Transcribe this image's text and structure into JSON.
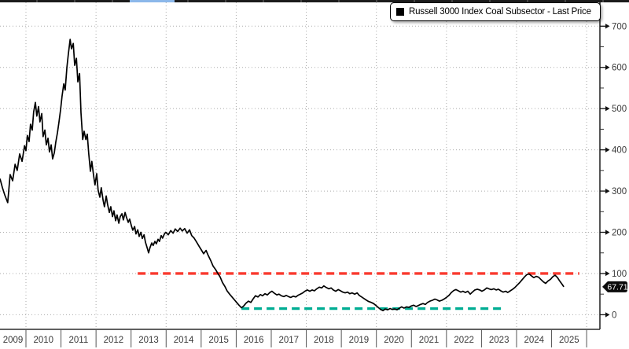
{
  "window": {
    "top_bar": {
      "accent_color": "#8cb8ea",
      "bar_color": "#1b1b1b"
    }
  },
  "legend": {
    "marker_icon": "black-square",
    "label": "Russell 3000 Index Coal Subsector - Last Price"
  },
  "last_price": {
    "value": "67.71"
  },
  "colors": {
    "background": "#ffffff",
    "series_line": "#000000",
    "grid": "#ababab",
    "axis": "#2b2b2b",
    "tick_label": "#3a3a3a",
    "resistance_dashed": "#f9392e",
    "support_dashed": "#00ad93",
    "price_badge_bg": "#0b0b0b",
    "price_badge_text": "#ffffff"
  },
  "chart_data": {
    "type": "line",
    "title": "",
    "xlabel": "",
    "ylabel": "",
    "grid": "dotted",
    "legend_position": "top-right",
    "xlim": [
      2009.26,
      2026.38
    ],
    "ylim": [
      0,
      700
    ],
    "y_ticks": [
      0,
      100,
      200,
      300,
      400,
      500,
      600,
      700
    ],
    "y_minor_tick_step": 50,
    "x_ticks": [
      2009,
      2010,
      2011,
      2012,
      2013,
      2014,
      2015,
      2016,
      2017,
      2018,
      2019,
      2020,
      2021,
      2022,
      2023,
      2024,
      2025
    ],
    "vertical_gridline_years": [
      2010,
      2012,
      2014,
      2016,
      2018,
      2020,
      2022,
      2024,
      2026
    ],
    "last_price": 67.71,
    "reference_lines": [
      {
        "name": "resistance-100",
        "value": 100,
        "color": "#f9392e",
        "style": "dashed",
        "x_start": 2013.19,
        "x_end": 2025.79
      },
      {
        "name": "support-15",
        "value": 15,
        "color": "#00ad93",
        "style": "dashed",
        "x_start": 2016.15,
        "x_end": 2023.64
      }
    ],
    "series": [
      {
        "name": "Russell 3000 Index Coal Subsector - Last Price",
        "color": "#000000",
        "points": [
          [
            2009.26,
            330
          ],
          [
            2009.33,
            308
          ],
          [
            2009.39,
            292
          ],
          [
            2009.48,
            272
          ],
          [
            2009.55,
            340
          ],
          [
            2009.62,
            325
          ],
          [
            2009.69,
            365
          ],
          [
            2009.75,
            350
          ],
          [
            2009.82,
            390
          ],
          [
            2009.89,
            372
          ],
          [
            2009.96,
            410
          ],
          [
            2010.0,
            398
          ],
          [
            2010.04,
            435
          ],
          [
            2010.09,
            420
          ],
          [
            2010.13,
            462
          ],
          [
            2010.18,
            448
          ],
          [
            2010.22,
            492
          ],
          [
            2010.27,
            515
          ],
          [
            2010.31,
            482
          ],
          [
            2010.36,
            505
          ],
          [
            2010.4,
            468
          ],
          [
            2010.45,
            488
          ],
          [
            2010.49,
            432
          ],
          [
            2010.54,
            448
          ],
          [
            2010.58,
            412
          ],
          [
            2010.63,
            428
          ],
          [
            2010.67,
            395
          ],
          [
            2010.72,
            412
          ],
          [
            2010.76,
            378
          ],
          [
            2010.81,
            393
          ],
          [
            2010.85,
            418
          ],
          [
            2010.9,
            442
          ],
          [
            2010.94,
            466
          ],
          [
            2010.99,
            498
          ],
          [
            2011.03,
            530
          ],
          [
            2011.08,
            560
          ],
          [
            2011.12,
            545
          ],
          [
            2011.17,
            600
          ],
          [
            2011.21,
            632
          ],
          [
            2011.26,
            668
          ],
          [
            2011.3,
            645
          ],
          [
            2011.35,
            658
          ],
          [
            2011.39,
            605
          ],
          [
            2011.44,
            622
          ],
          [
            2011.48,
            565
          ],
          [
            2011.53,
            585
          ],
          [
            2011.57,
            490
          ],
          [
            2011.62,
            425
          ],
          [
            2011.66,
            445
          ],
          [
            2011.71,
            425
          ],
          [
            2011.75,
            438
          ],
          [
            2011.79,
            392
          ],
          [
            2011.84,
            348
          ],
          [
            2011.88,
            372
          ],
          [
            2011.93,
            338
          ],
          [
            2011.97,
            315
          ],
          [
            2012.02,
            342
          ],
          [
            2012.06,
            302
          ],
          [
            2012.11,
            285
          ],
          [
            2012.15,
            308
          ],
          [
            2012.2,
            278
          ],
          [
            2012.24,
            262
          ],
          [
            2012.29,
            288
          ],
          [
            2012.33,
            268
          ],
          [
            2012.38,
            248
          ],
          [
            2012.42,
            262
          ],
          [
            2012.47,
            238
          ],
          [
            2012.51,
            252
          ],
          [
            2012.56,
            228
          ],
          [
            2012.6,
            242
          ],
          [
            2012.65,
            222
          ],
          [
            2012.69,
            238
          ],
          [
            2012.74,
            245
          ],
          [
            2012.78,
            230
          ],
          [
            2012.83,
            248
          ],
          [
            2012.87,
            236
          ],
          [
            2012.92,
            224
          ],
          [
            2012.96,
            232
          ],
          [
            2013.01,
            215
          ],
          [
            2013.05,
            205
          ],
          [
            2013.1,
            214
          ],
          [
            2013.14,
            196
          ],
          [
            2013.19,
            206
          ],
          [
            2013.23,
            190
          ],
          [
            2013.28,
            200
          ],
          [
            2013.32,
            185
          ],
          [
            2013.37,
            194
          ],
          [
            2013.41,
            176
          ],
          [
            2013.46,
            162
          ],
          [
            2013.5,
            150
          ],
          [
            2013.54,
            163
          ],
          [
            2013.59,
            174
          ],
          [
            2013.63,
            168
          ],
          [
            2013.68,
            178
          ],
          [
            2013.72,
            172
          ],
          [
            2013.77,
            183
          ],
          [
            2013.81,
            178
          ],
          [
            2013.86,
            192
          ],
          [
            2013.9,
            186
          ],
          [
            2013.95,
            196
          ],
          [
            2013.99,
            200
          ],
          [
            2014.06,
            194
          ],
          [
            2014.13,
            204
          ],
          [
            2014.2,
            198
          ],
          [
            2014.26,
            208
          ],
          [
            2014.33,
            202
          ],
          [
            2014.4,
            210
          ],
          [
            2014.46,
            203
          ],
          [
            2014.53,
            209
          ],
          [
            2014.6,
            198
          ],
          [
            2014.67,
            206
          ],
          [
            2014.73,
            192
          ],
          [
            2014.8,
            186
          ],
          [
            2014.87,
            176
          ],
          [
            2014.94,
            166
          ],
          [
            2015.0,
            158
          ],
          [
            2015.07,
            148
          ],
          [
            2015.14,
            156
          ],
          [
            2015.2,
            144
          ],
          [
            2015.27,
            132
          ],
          [
            2015.34,
            118
          ],
          [
            2015.41,
            110
          ],
          [
            2015.47,
            101
          ],
          [
            2015.54,
            92
          ],
          [
            2015.61,
            78
          ],
          [
            2015.68,
            68
          ],
          [
            2015.74,
            58
          ],
          [
            2015.81,
            50
          ],
          [
            2015.88,
            43
          ],
          [
            2015.95,
            36
          ],
          [
            2016.01,
            30
          ],
          [
            2016.08,
            23
          ],
          [
            2016.15,
            17
          ],
          [
            2016.21,
            21
          ],
          [
            2016.28,
            28
          ],
          [
            2016.35,
            33
          ],
          [
            2016.42,
            30
          ],
          [
            2016.48,
            38
          ],
          [
            2016.55,
            46
          ],
          [
            2016.62,
            43
          ],
          [
            2016.69,
            49
          ],
          [
            2016.75,
            46
          ],
          [
            2016.82,
            51
          ],
          [
            2016.89,
            48
          ],
          [
            2016.96,
            54
          ],
          [
            2017.02,
            57
          ],
          [
            2017.09,
            52
          ],
          [
            2017.16,
            48
          ],
          [
            2017.22,
            50
          ],
          [
            2017.29,
            46
          ],
          [
            2017.36,
            44
          ],
          [
            2017.43,
            47
          ],
          [
            2017.49,
            44
          ],
          [
            2017.56,
            42
          ],
          [
            2017.63,
            45
          ],
          [
            2017.7,
            43
          ],
          [
            2017.76,
            47
          ],
          [
            2017.83,
            50
          ],
          [
            2017.9,
            53
          ],
          [
            2017.96,
            57
          ],
          [
            2018.03,
            60
          ],
          [
            2018.1,
            57
          ],
          [
            2018.17,
            60
          ],
          [
            2018.23,
            58
          ],
          [
            2018.3,
            63
          ],
          [
            2018.37,
            67
          ],
          [
            2018.44,
            65
          ],
          [
            2018.5,
            70
          ],
          [
            2018.57,
            66
          ],
          [
            2018.64,
            63
          ],
          [
            2018.71,
            65
          ],
          [
            2018.77,
            60
          ],
          [
            2018.84,
            57
          ],
          [
            2018.91,
            61
          ],
          [
            2018.98,
            58
          ],
          [
            2019.04,
            55
          ],
          [
            2019.11,
            53
          ],
          [
            2019.18,
            55
          ],
          [
            2019.24,
            51
          ],
          [
            2019.31,
            53
          ],
          [
            2019.38,
            50
          ],
          [
            2019.45,
            53
          ],
          [
            2019.51,
            47
          ],
          [
            2019.58,
            43
          ],
          [
            2019.65,
            39
          ],
          [
            2019.72,
            35
          ],
          [
            2019.78,
            32
          ],
          [
            2019.85,
            30
          ],
          [
            2019.92,
            27
          ],
          [
            2019.98,
            23
          ],
          [
            2020.05,
            18
          ],
          [
            2020.12,
            13
          ],
          [
            2020.19,
            10
          ],
          [
            2020.25,
            14
          ],
          [
            2020.32,
            12
          ],
          [
            2020.39,
            15
          ],
          [
            2020.45,
            13
          ],
          [
            2020.52,
            14
          ],
          [
            2020.59,
            12
          ],
          [
            2020.66,
            16
          ],
          [
            2020.72,
            19
          ],
          [
            2020.79,
            16
          ],
          [
            2020.86,
            19
          ],
          [
            2020.93,
            18
          ],
          [
            2020.99,
            21
          ],
          [
            2021.06,
            23
          ],
          [
            2021.13,
            20
          ],
          [
            2021.19,
            22
          ],
          [
            2021.26,
            25
          ],
          [
            2021.33,
            27
          ],
          [
            2021.4,
            25
          ],
          [
            2021.46,
            30
          ],
          [
            2021.53,
            33
          ],
          [
            2021.6,
            35
          ],
          [
            2021.67,
            38
          ],
          [
            2021.73,
            36
          ],
          [
            2021.8,
            33
          ],
          [
            2021.87,
            35
          ],
          [
            2021.93,
            38
          ],
          [
            2022.0,
            42
          ],
          [
            2022.07,
            47
          ],
          [
            2022.14,
            54
          ],
          [
            2022.21,
            59
          ],
          [
            2022.27,
            61
          ],
          [
            2022.34,
            58
          ],
          [
            2022.41,
            55
          ],
          [
            2022.47,
            57
          ],
          [
            2022.54,
            54
          ],
          [
            2022.61,
            57
          ],
          [
            2022.68,
            50
          ],
          [
            2022.74,
            55
          ],
          [
            2022.81,
            60
          ],
          [
            2022.88,
            62
          ],
          [
            2022.95,
            60
          ],
          [
            2023.01,
            57
          ],
          [
            2023.08,
            60
          ],
          [
            2023.15,
            65
          ],
          [
            2023.21,
            63
          ],
          [
            2023.28,
            61
          ],
          [
            2023.35,
            63
          ],
          [
            2023.42,
            60
          ],
          [
            2023.48,
            62
          ],
          [
            2023.55,
            58
          ],
          [
            2023.62,
            55
          ],
          [
            2023.69,
            57
          ],
          [
            2023.75,
            54
          ],
          [
            2023.82,
            58
          ],
          [
            2023.89,
            62
          ],
          [
            2023.95,
            66
          ],
          [
            2024.02,
            72
          ],
          [
            2024.09,
            78
          ],
          [
            2024.16,
            85
          ],
          [
            2024.23,
            92
          ],
          [
            2024.29,
            97
          ],
          [
            2024.36,
            99
          ],
          [
            2024.43,
            94
          ],
          [
            2024.49,
            90
          ],
          [
            2024.56,
            93
          ],
          [
            2024.63,
            91
          ],
          [
            2024.7,
            85
          ],
          [
            2024.76,
            80
          ],
          [
            2024.83,
            76
          ],
          [
            2024.9,
            82
          ],
          [
            2024.97,
            86
          ],
          [
            2025.03,
            92
          ],
          [
            2025.1,
            96
          ],
          [
            2025.17,
            90
          ],
          [
            2025.23,
            82
          ],
          [
            2025.3,
            74
          ],
          [
            2025.35,
            67.71
          ]
        ]
      }
    ]
  }
}
